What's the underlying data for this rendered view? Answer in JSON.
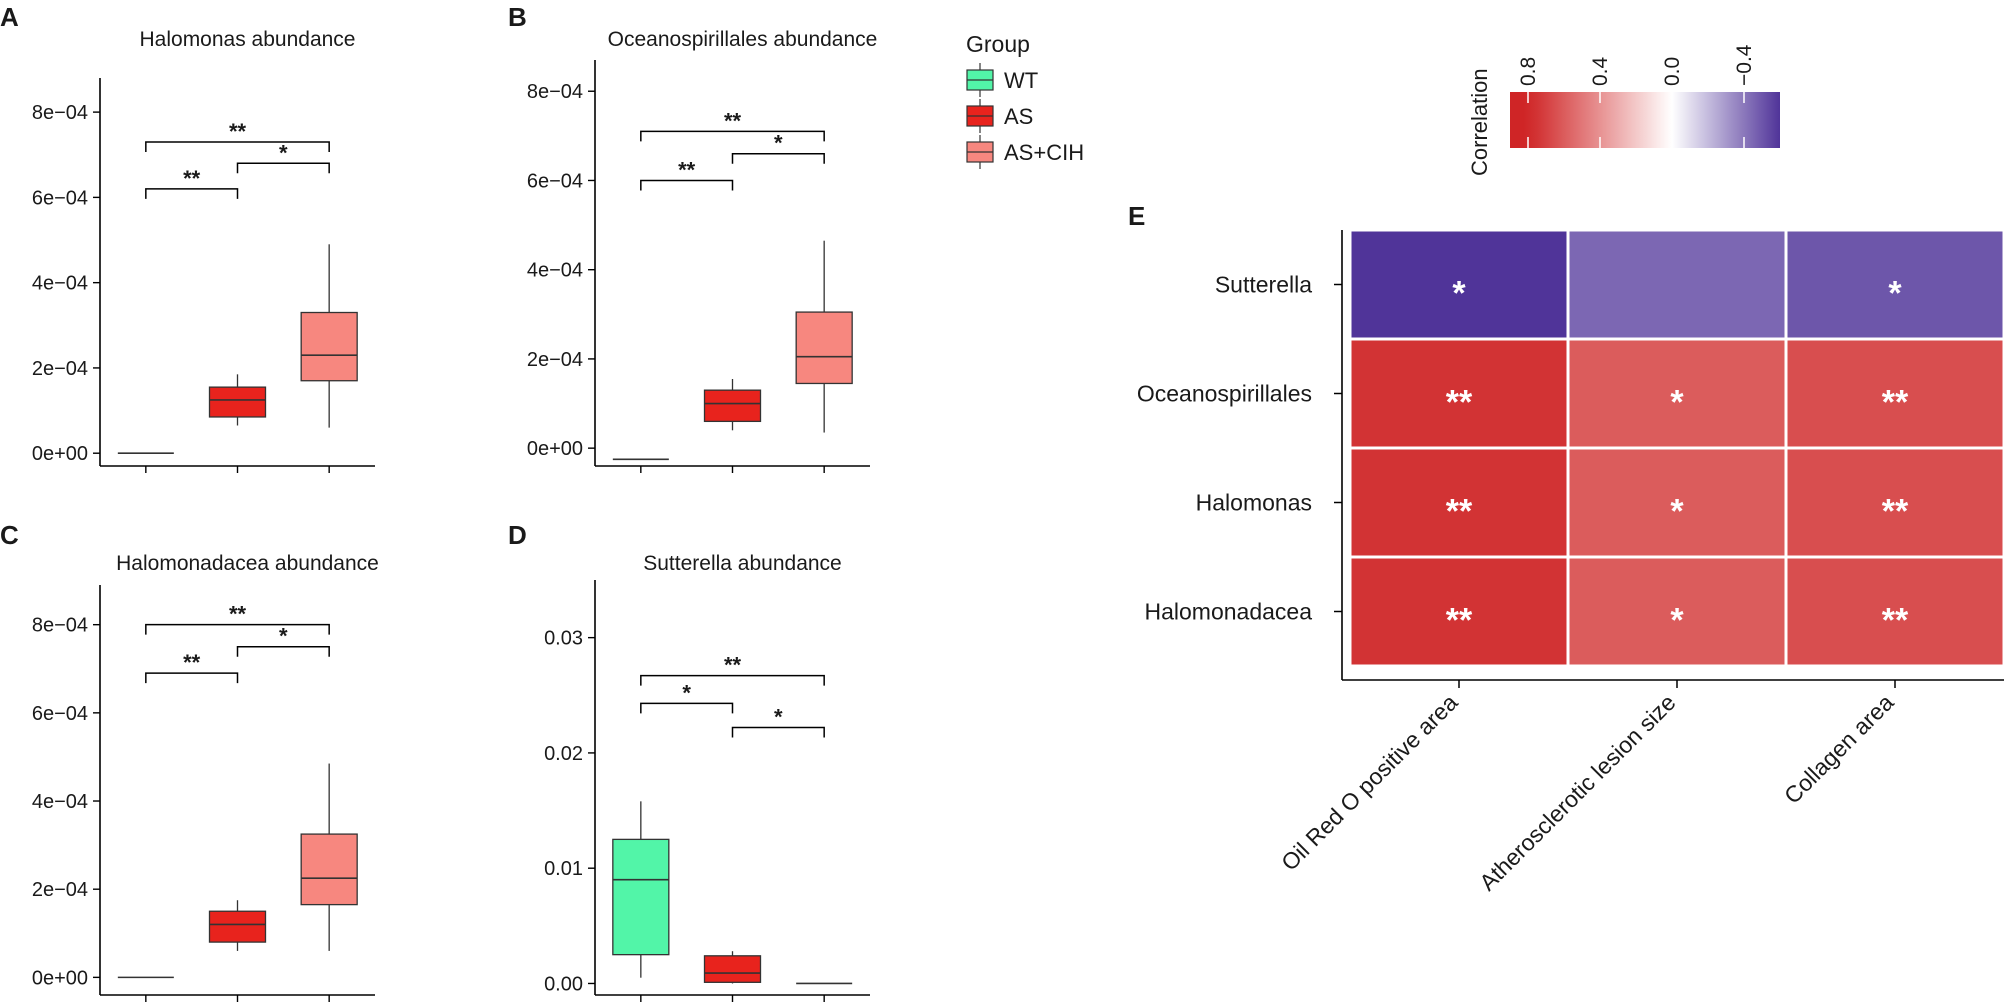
{
  "chart_data": [
    {
      "type": "box",
      "panel": "A",
      "title": "Halomonas abundance",
      "ylim": [
        -3e-05,
        0.00088
      ],
      "yticks": [
        {
          "value": 0,
          "label": "0e+00"
        },
        {
          "value": 0.0002,
          "label": "2e−04"
        },
        {
          "value": 0.0004,
          "label": "4e−04"
        },
        {
          "value": 0.0006,
          "label": "6e−04"
        },
        {
          "value": 0.0008,
          "label": "8e−04"
        }
      ],
      "groups": [
        {
          "group": "WT",
          "min": 0,
          "q1": 0,
          "median": 0,
          "q3": 0,
          "max": 0
        },
        {
          "group": "AS",
          "min": 6.5e-05,
          "q1": 8.5e-05,
          "median": 0.000125,
          "q3": 0.000155,
          "max": 0.000185
        },
        {
          "group": "AS+CIH",
          "min": 6e-05,
          "q1": 0.00017,
          "median": 0.00023,
          "q3": 0.00033,
          "max": 0.00049
        }
      ],
      "comparisons": [
        {
          "from": 0,
          "to": 1,
          "label": "**",
          "y": 0.00062
        },
        {
          "from": 1,
          "to": 2,
          "label": "*",
          "y": 0.00068
        },
        {
          "from": 0,
          "to": 2,
          "label": "**",
          "y": 0.00073
        }
      ]
    },
    {
      "type": "box",
      "panel": "B",
      "title": "Oceanospirillales abundance",
      "ylim": [
        -4e-05,
        0.00087
      ],
      "yticks": [
        {
          "value": 0,
          "label": "0e+00"
        },
        {
          "value": 0.0002,
          "label": "2e−04"
        },
        {
          "value": 0.0004,
          "label": "4e−04"
        },
        {
          "value": 0.0006,
          "label": "6e−04"
        },
        {
          "value": 0.0008,
          "label": "8e−04"
        }
      ],
      "groups": [
        {
          "group": "WT",
          "min": -2.5e-05,
          "q1": -2.5e-05,
          "median": -2.5e-05,
          "q3": -2.5e-05,
          "max": -2.5e-05
        },
        {
          "group": "AS",
          "min": 4e-05,
          "q1": 6e-05,
          "median": 0.0001,
          "q3": 0.00013,
          "max": 0.000155
        },
        {
          "group": "AS+CIH",
          "min": 3.5e-05,
          "q1": 0.000145,
          "median": 0.000205,
          "q3": 0.000305,
          "max": 0.000465
        }
      ],
      "comparisons": [
        {
          "from": 0,
          "to": 1,
          "label": "**",
          "y": 0.0006
        },
        {
          "from": 1,
          "to": 2,
          "label": "*",
          "y": 0.00066
        },
        {
          "from": 0,
          "to": 2,
          "label": "**",
          "y": 0.00071
        }
      ]
    },
    {
      "type": "box",
      "panel": "C",
      "title": "Halomonadacea abundance",
      "ylim": [
        -4e-05,
        0.00089
      ],
      "yticks": [
        {
          "value": 0,
          "label": "0e+00"
        },
        {
          "value": 0.0002,
          "label": "2e−04"
        },
        {
          "value": 0.0004,
          "label": "4e−04"
        },
        {
          "value": 0.0006,
          "label": "6e−04"
        },
        {
          "value": 0.0008,
          "label": "8e−04"
        }
      ],
      "groups": [
        {
          "group": "WT",
          "min": 0,
          "q1": 0,
          "median": 0,
          "q3": 0,
          "max": 0
        },
        {
          "group": "AS",
          "min": 6e-05,
          "q1": 8e-05,
          "median": 0.00012,
          "q3": 0.00015,
          "max": 0.000175
        },
        {
          "group": "AS+CIH",
          "min": 6e-05,
          "q1": 0.000165,
          "median": 0.000225,
          "q3": 0.000325,
          "max": 0.000485
        }
      ],
      "comparisons": [
        {
          "from": 0,
          "to": 1,
          "label": "**",
          "y": 0.00069
        },
        {
          "from": 1,
          "to": 2,
          "label": "*",
          "y": 0.00075
        },
        {
          "from": 0,
          "to": 2,
          "label": "**",
          "y": 0.0008
        }
      ]
    },
    {
      "type": "box",
      "panel": "D",
      "title": "Sutterella abundance",
      "ylim": [
        -0.001,
        0.035
      ],
      "yticks": [
        {
          "value": 0,
          "label": "0.00"
        },
        {
          "value": 0.01,
          "label": "0.01"
        },
        {
          "value": 0.02,
          "label": "0.02"
        },
        {
          "value": 0.03,
          "label": "0.03"
        }
      ],
      "groups": [
        {
          "group": "WT",
          "min": 0.0005,
          "q1": 0.0025,
          "median": 0.009,
          "q3": 0.0125,
          "max": 0.0158
        },
        {
          "group": "AS",
          "min": 0.0,
          "q1": 0.0001,
          "median": 0.0009,
          "q3": 0.0024,
          "max": 0.0028
        },
        {
          "group": "AS+CIH",
          "min": 0,
          "q1": 0,
          "median": 0,
          "q3": 0,
          "max": 0
        }
      ],
      "comparisons": [
        {
          "from": 0,
          "to": 1,
          "label": "*",
          "y": 0.0243
        },
        {
          "from": 1,
          "to": 2,
          "label": "*",
          "y": 0.0222
        },
        {
          "from": 0,
          "to": 2,
          "label": "**",
          "y": 0.0267
        }
      ]
    },
    {
      "type": "heatmap",
      "panel": "E",
      "rows": [
        "Sutterella",
        "Oceanospirillales",
        "Halomonas",
        "Halomonadacea"
      ],
      "columns": [
        "Oil Red O positive area",
        "Atherosclerotic lesion size",
        "Collagen area"
      ],
      "values": [
        [
          -0.6,
          -0.45,
          -0.5
        ],
        [
          0.75,
          0.6,
          0.65
        ],
        [
          0.75,
          0.6,
          0.65
        ],
        [
          0.75,
          0.6,
          0.65
        ]
      ],
      "significance": [
        [
          "*",
          "",
          "*"
        ],
        [
          "**",
          "*",
          "**"
        ],
        [
          "**",
          "*",
          "**"
        ],
        [
          "**",
          "*",
          "**"
        ]
      ],
      "colorbar": {
        "title": "Correlation",
        "range": [
          0.9,
          -0.6
        ],
        "ticks": [
          {
            "value": 0.8,
            "label": "0.8"
          },
          {
            "value": 0.4,
            "label": "0.4"
          },
          {
            "value": 0.0,
            "label": "0.0"
          },
          {
            "value": -0.4,
            "label": "−0.4"
          }
        ]
      }
    }
  ],
  "legend": {
    "title": "Group",
    "items": [
      {
        "label": "WT",
        "color": "#52f5a8"
      },
      {
        "label": "AS",
        "color": "#e8231d"
      },
      {
        "label": "AS+CIH",
        "color": "#f7877f"
      }
    ]
  },
  "colors": {
    "positive": "#cf2526",
    "mid": "#ffffff",
    "negative": "#4a2d96"
  }
}
